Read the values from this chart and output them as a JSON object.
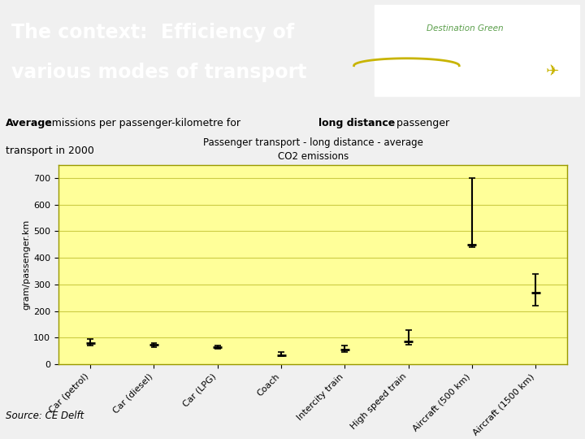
{
  "title_line1": "Passenger transport - long distance - average",
  "title_line2": "CO2 emissions",
  "ylabel": "gram/passenger.km",
  "header_title_line1": "The context:  Efficiency of",
  "header_title_line2": "various modes of transport",
  "header_bg": "#5a9e4a",
  "header_text_color": "#ffffff",
  "chart_bg": "#ffff99",
  "source_text": "Source: CE Delft",
  "categories": [
    "Car (petrol)",
    "Car (diesel)",
    "Car (LPG)",
    "Coach",
    "Intercity train",
    "High speed train",
    "Aircraft (500 km)",
    "Aircraft (1500 km)"
  ],
  "values": [
    80,
    75,
    65,
    35,
    55,
    85,
    450,
    270
  ],
  "error_low": [
    70,
    65,
    58,
    30,
    45,
    75,
    440,
    220
  ],
  "error_high": [
    95,
    80,
    70,
    45,
    70,
    130,
    700,
    340
  ],
  "ylim": [
    0,
    750
  ],
  "yticks": [
    0,
    100,
    200,
    300,
    400,
    500,
    600,
    700
  ],
  "plot_bg": "#ffff99",
  "border_color": "#999900",
  "grid_color": "#cccc44",
  "page_bg": "#f0f0f0",
  "subtitle_bold_words": "Average",
  "subtitle_text_full": "Average emissions per passenger-kilometre for long distance passenger\ntransport in 2000"
}
